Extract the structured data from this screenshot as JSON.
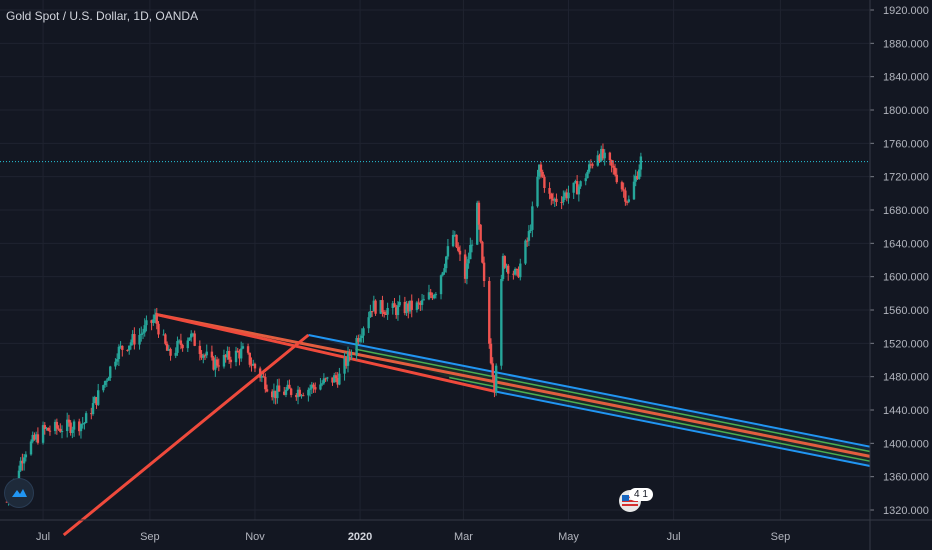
{
  "header": {
    "title": "Gold Spot / U.S. Dollar, 1D, OANDA"
  },
  "badge": {
    "count": "4 1"
  },
  "colors": {
    "background": "#131722",
    "grid": "#1f2330",
    "up": "#26a69a",
    "down": "#ef5350",
    "median_line": "#e25d3f",
    "handle": "#ef4a3c",
    "outer_band": "#2196f3",
    "inner_band": "#4caf50",
    "outer_fill": "rgba(33,150,243,0.13)",
    "inner_fill": "rgba(76,175,80,0.13)",
    "current_price_line": "#26c6da"
  },
  "chart_data": {
    "type": "candlestick",
    "symbol": "Gold Spot / U.S. Dollar",
    "interval": "1D",
    "source": "OANDA",
    "x_ticks": [
      "Jul",
      "Sep",
      "Nov",
      "2020",
      "Mar",
      "May",
      "Jul",
      "Sep"
    ],
    "x_tick_dates": [
      "2019-07-01",
      "2019-09-01",
      "2019-11-01",
      "2020-01-01",
      "2020-03-01",
      "2020-05-01",
      "2020-07-01",
      "2020-09-01"
    ],
    "y_ticks": [
      "1320.000",
      "1360.000",
      "1400.000",
      "1440.000",
      "1480.000",
      "1520.000",
      "1560.000",
      "1600.000",
      "1640.000",
      "1680.000",
      "1720.000",
      "1760.000",
      "1800.000",
      "1840.000",
      "1880.000",
      "1920.000"
    ],
    "y_tick_values": [
      1320,
      1360,
      1400,
      1440,
      1480,
      1520,
      1560,
      1600,
      1640,
      1680,
      1720,
      1760,
      1800,
      1840,
      1880,
      1920
    ],
    "ylim": [
      1308,
      1932
    ],
    "xlim": [
      "2019-06-06",
      "2020-10-23"
    ],
    "grid": true,
    "current_price": 1738,
    "price_path": [
      {
        "date": "2019-06-10",
        "price": 1330
      },
      {
        "date": "2019-06-20",
        "price": 1390
      },
      {
        "date": "2019-07-01",
        "price": 1415
      },
      {
        "date": "2019-07-15",
        "price": 1420
      },
      {
        "date": "2019-07-25",
        "price": 1425
      },
      {
        "date": "2019-08-05",
        "price": 1470
      },
      {
        "date": "2019-08-13",
        "price": 1510
      },
      {
        "date": "2019-08-26",
        "price": 1530
      },
      {
        "date": "2019-09-04",
        "price": 1550
      },
      {
        "date": "2019-09-12",
        "price": 1505
      },
      {
        "date": "2019-09-24",
        "price": 1530
      },
      {
        "date": "2019-10-07",
        "price": 1495
      },
      {
        "date": "2019-10-25",
        "price": 1510
      },
      {
        "date": "2019-11-12",
        "price": 1460
      },
      {
        "date": "2019-12-01",
        "price": 1465
      },
      {
        "date": "2019-12-20",
        "price": 1480
      },
      {
        "date": "2020-01-08",
        "price": 1565
      },
      {
        "date": "2020-01-20",
        "price": 1560
      },
      {
        "date": "2020-02-05",
        "price": 1565
      },
      {
        "date": "2020-02-14",
        "price": 1585
      },
      {
        "date": "2020-02-24",
        "price": 1650
      },
      {
        "date": "2020-03-02",
        "price": 1600
      },
      {
        "date": "2020-03-09",
        "price": 1680
      },
      {
        "date": "2020-03-16",
        "price": 1520
      },
      {
        "date": "2020-03-19",
        "price": 1470
      },
      {
        "date": "2020-03-24",
        "price": 1620
      },
      {
        "date": "2020-04-01",
        "price": 1600
      },
      {
        "date": "2020-04-08",
        "price": 1650
      },
      {
        "date": "2020-04-14",
        "price": 1730
      },
      {
        "date": "2020-04-21",
        "price": 1690
      },
      {
        "date": "2020-04-30",
        "price": 1700
      },
      {
        "date": "2020-05-08",
        "price": 1710
      },
      {
        "date": "2020-05-18",
        "price": 1750
      },
      {
        "date": "2020-05-28",
        "price": 1725
      },
      {
        "date": "2020-06-05",
        "price": 1690
      },
      {
        "date": "2020-06-12",
        "price": 1740
      }
    ],
    "pitchfork": {
      "pivot_a": {
        "date": "2019-09-04",
        "price": 1555
      },
      "pivot_b": {
        "date": "2019-12-02",
        "price": 1530
      },
      "pivot_c": {
        "date": "2020-03-20",
        "price": 1462
      }
    },
    "handle_line": {
      "start": {
        "date": "2019-07-13",
        "price": 1290
      },
      "end": {
        "date": "2019-12-02",
        "price": 1530
      }
    }
  }
}
